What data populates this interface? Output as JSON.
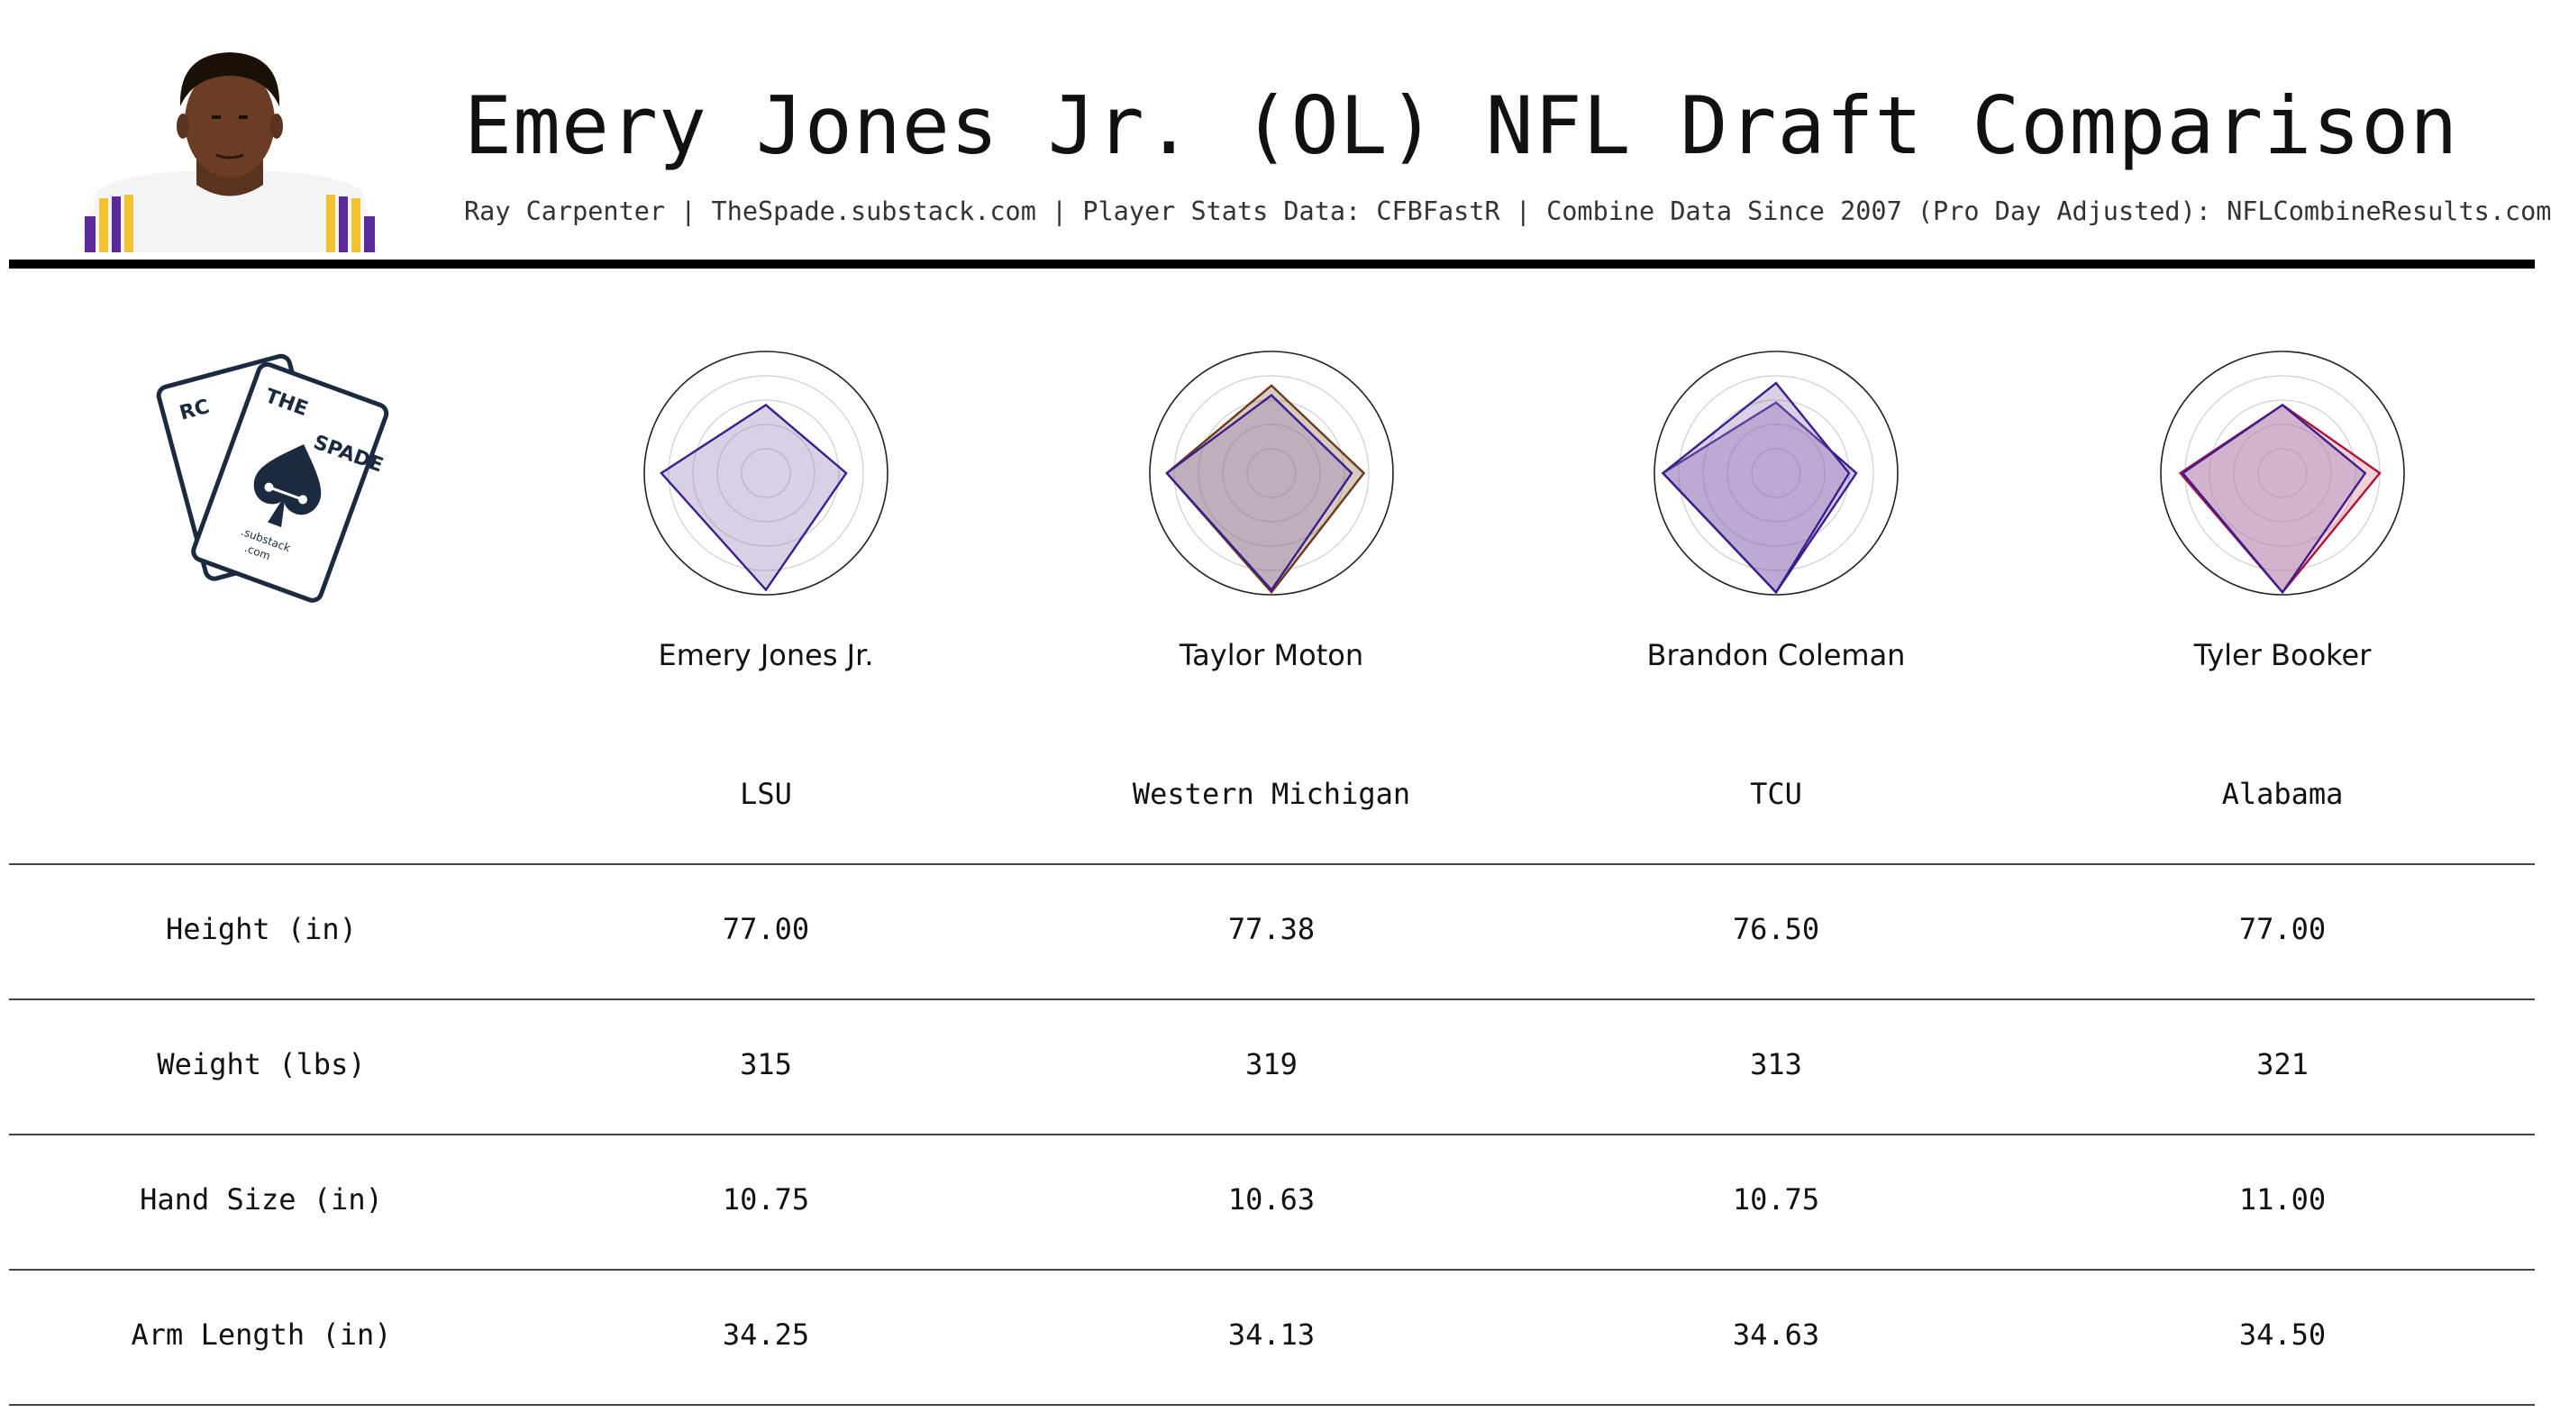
{
  "header": {
    "title": "Emery Jones Jr. (OL) NFL Draft Comparison",
    "subtitle": "Ray Carpenter | TheSpade.substack.com | Player Stats Data: CFBFastR | Combine Data Since 2007 (Pro Day Adjusted): NFLCombineResults.com",
    "headshot_icon": "player-headshot",
    "jersey_colors": {
      "purple": "#5b2a9a",
      "gold": "#f2c230",
      "white": "#f4f4f4",
      "skin": "#6b3d25"
    }
  },
  "logo": {
    "card_back_text": "RC",
    "card_front_text_left": "THE",
    "card_front_text_right": "SPADE",
    "card_front_small": ".substack",
    "card_front_small2": ".com",
    "color": "#1c2a40"
  },
  "players": [
    {
      "name": "Emery Jones Jr.",
      "school": "LSU"
    },
    {
      "name": "Taylor Moton",
      "school": "Western Michigan"
    },
    {
      "name": "Brandon Coleman",
      "school": "TCU"
    },
    {
      "name": "Tyler Booker",
      "school": "Alabama"
    }
  ],
  "table": {
    "rows": [
      {
        "label": "Height (in)",
        "values": [
          "77.00",
          "77.38",
          "76.50",
          "77.00"
        ]
      },
      {
        "label": "Weight (lbs)",
        "values": [
          "315",
          "319",
          "313",
          "321"
        ]
      },
      {
        "label": "Hand Size (in)",
        "values": [
          "10.75",
          "10.63",
          "10.75",
          "11.00"
        ]
      },
      {
        "label": "Arm Length (in)",
        "values": [
          "34.25",
          "34.13",
          "34.63",
          "34.50"
        ]
      }
    ]
  },
  "chart_data": [
    {
      "type": "radar",
      "axes_count": 4,
      "rlim": [
        0,
        1
      ],
      "rings": [
        0.2,
        0.4,
        0.6,
        0.8,
        1.0
      ],
      "series": [
        {
          "values": [
            0.66,
            0.56,
            0.86,
            0.96
          ],
          "fill": "#9478b8",
          "stroke": "#3b1f8c",
          "opacity": 0.35
        }
      ]
    },
    {
      "type": "radar",
      "axes_count": 4,
      "rlim": [
        0,
        1
      ],
      "series": [
        {
          "values": [
            0.76,
            0.72,
            0.86,
            0.98
          ],
          "fill": "#8e6a48",
          "stroke": "#6b3a1a",
          "opacity": 0.35
        },
        {
          "values": [
            0.66,
            0.64,
            0.86,
            0.96
          ],
          "fill": "#9478b8",
          "stroke": "#3b1f8c",
          "opacity": 0.35
        }
      ]
    },
    {
      "type": "radar",
      "axes_count": 4,
      "rlim": [
        0,
        1
      ],
      "series": [
        {
          "values": [
            0.66,
            0.58,
            0.93,
            0.98
          ],
          "fill": "#7a5aa8",
          "stroke": "#3b1f8c",
          "opacity": 0.35
        },
        {
          "values": [
            0.6,
            0.74,
            0.93,
            0.98
          ],
          "fill": "#9478b8",
          "stroke": "#3b1f8c",
          "opacity": 0.35
        }
      ]
    },
    {
      "type": "radar",
      "axes_count": 4,
      "rlim": [
        0,
        1
      ],
      "series": [
        {
          "values": [
            0.8,
            0.56,
            0.84,
            0.98
          ],
          "fill": "#e08c9c",
          "stroke": "#b0123a",
          "opacity": 0.4
        },
        {
          "values": [
            0.68,
            0.56,
            0.82,
            0.98
          ],
          "fill": "#9478b8",
          "stroke": "#3b1f8c",
          "opacity": 0.35
        }
      ]
    }
  ]
}
